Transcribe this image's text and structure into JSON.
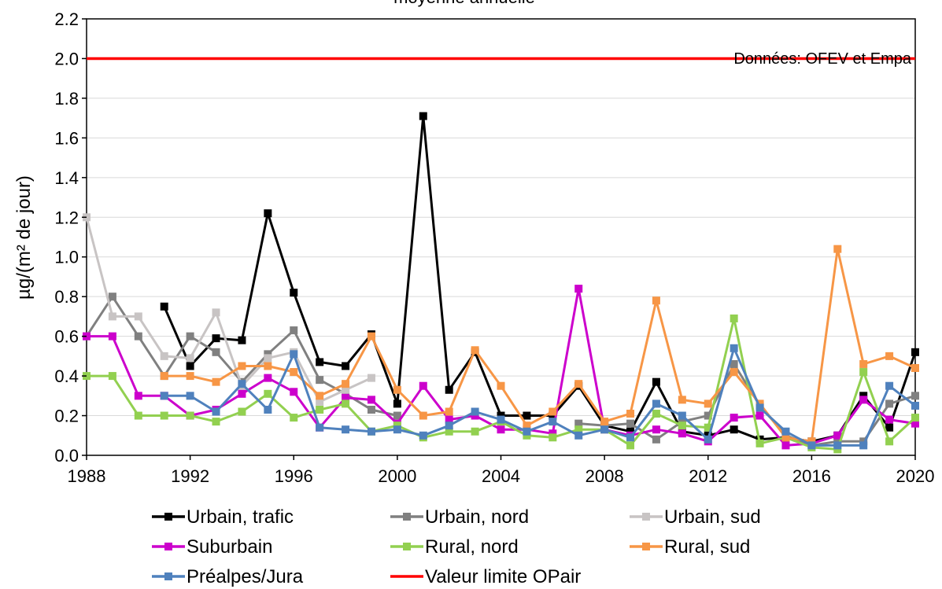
{
  "chart_data": {
    "type": "line",
    "title": "moyenne annuelle",
    "ylabel": "µg/(m² de jour)",
    "xlabel": "",
    "source_note": "Données: OFEV et Empa",
    "xlim": [
      1988,
      2020
    ],
    "ylim": [
      0,
      2.2
    ],
    "x_ticks": [
      1988,
      1992,
      1996,
      2000,
      2004,
      2008,
      2012,
      2016,
      2020
    ],
    "y_ticks": [
      "0.0",
      "0.2",
      "0.4",
      "0.6",
      "0.8",
      "1.0",
      "1.2",
      "1.4",
      "1.6",
      "1.8",
      "2.0",
      "2.2"
    ],
    "x": [
      1988,
      1989,
      1990,
      1991,
      1992,
      1993,
      1994,
      1995,
      1996,
      1997,
      1998,
      1999,
      2000,
      2001,
      2002,
      2003,
      2004,
      2005,
      2006,
      2007,
      2008,
      2009,
      2010,
      2011,
      2012,
      2013,
      2014,
      2015,
      2016,
      2017,
      2018,
      2019,
      2020
    ],
    "series": [
      {
        "name": "Urbain, trafic",
        "color": "#000000",
        "values": [
          null,
          null,
          null,
          0.75,
          0.45,
          0.59,
          0.58,
          1.22,
          0.82,
          0.47,
          0.45,
          0.61,
          0.26,
          1.71,
          0.33,
          0.52,
          0.2,
          0.2,
          0.2,
          0.35,
          0.15,
          0.12,
          0.37,
          0.12,
          0.1,
          0.13,
          0.08,
          0.09,
          0.07,
          0.1,
          0.3,
          0.14,
          0.52
        ]
      },
      {
        "name": "Urbain, nord",
        "color": "#808080",
        "values": [
          0.6,
          0.8,
          0.6,
          0.4,
          0.6,
          0.52,
          0.37,
          0.51,
          0.63,
          0.38,
          0.31,
          0.23,
          0.2,
          null,
          null,
          null,
          null,
          null,
          null,
          0.16,
          0.15,
          0.16,
          0.08,
          0.17,
          0.2,
          0.46,
          0.25,
          0.1,
          0.05,
          0.07,
          0.07,
          0.26,
          0.3
        ]
      },
      {
        "name": "Urbain, sud",
        "color": "#c8c4c4",
        "values": [
          1.2,
          0.7,
          0.7,
          0.5,
          0.49,
          0.72,
          0.35,
          0.49,
          0.52,
          0.27,
          0.33,
          0.39,
          null,
          null,
          null,
          null,
          null,
          null,
          null,
          null,
          null,
          null,
          null,
          null,
          null,
          null,
          null,
          null,
          null,
          null,
          null,
          null,
          null
        ]
      },
      {
        "name": "Suburbain",
        "color": "#cc00cc",
        "values": [
          0.6,
          0.6,
          0.3,
          0.3,
          0.2,
          0.23,
          0.31,
          0.39,
          0.32,
          0.14,
          0.29,
          0.28,
          0.16,
          0.35,
          0.18,
          0.2,
          0.13,
          0.13,
          0.11,
          0.84,
          0.13,
          0.1,
          0.13,
          0.11,
          0.07,
          0.19,
          0.2,
          0.05,
          0.06,
          0.1,
          0.28,
          0.18,
          0.16
        ]
      },
      {
        "name": "Rural, nord",
        "color": "#92d050",
        "values": [
          0.4,
          0.4,
          0.2,
          0.2,
          0.2,
          0.17,
          0.22,
          0.31,
          0.19,
          0.23,
          0.26,
          0.12,
          0.15,
          0.09,
          0.12,
          0.12,
          0.17,
          0.1,
          0.09,
          0.13,
          0.13,
          0.05,
          0.21,
          0.15,
          0.14,
          0.69,
          0.06,
          0.09,
          0.04,
          0.03,
          0.42,
          0.07,
          0.19
        ]
      },
      {
        "name": "Rural, sud",
        "color": "#f79646",
        "values": [
          null,
          null,
          null,
          0.4,
          0.4,
          0.37,
          0.45,
          0.45,
          0.42,
          0.3,
          0.36,
          0.6,
          0.33,
          0.2,
          0.22,
          0.53,
          0.35,
          0.15,
          0.22,
          0.36,
          0.17,
          0.21,
          0.78,
          0.28,
          0.26,
          0.42,
          0.26,
          0.09,
          0.07,
          1.04,
          0.46,
          0.5,
          0.44
        ]
      },
      {
        "name": "Préalpes/Jura",
        "color": "#4f81bd",
        "values": [
          null,
          null,
          null,
          0.3,
          0.3,
          0.22,
          0.36,
          0.23,
          0.51,
          0.14,
          0.13,
          0.12,
          0.13,
          0.1,
          0.15,
          0.22,
          0.18,
          0.12,
          0.17,
          0.1,
          0.13,
          0.09,
          0.26,
          0.2,
          0.08,
          0.54,
          0.24,
          0.12,
          0.05,
          0.05,
          0.05,
          0.35,
          0.25
        ]
      }
    ],
    "limit_line": {
      "name": "Valeur limite OPair",
      "value": 2.0,
      "color": "#ff0000"
    },
    "legend_position": "bottom"
  }
}
